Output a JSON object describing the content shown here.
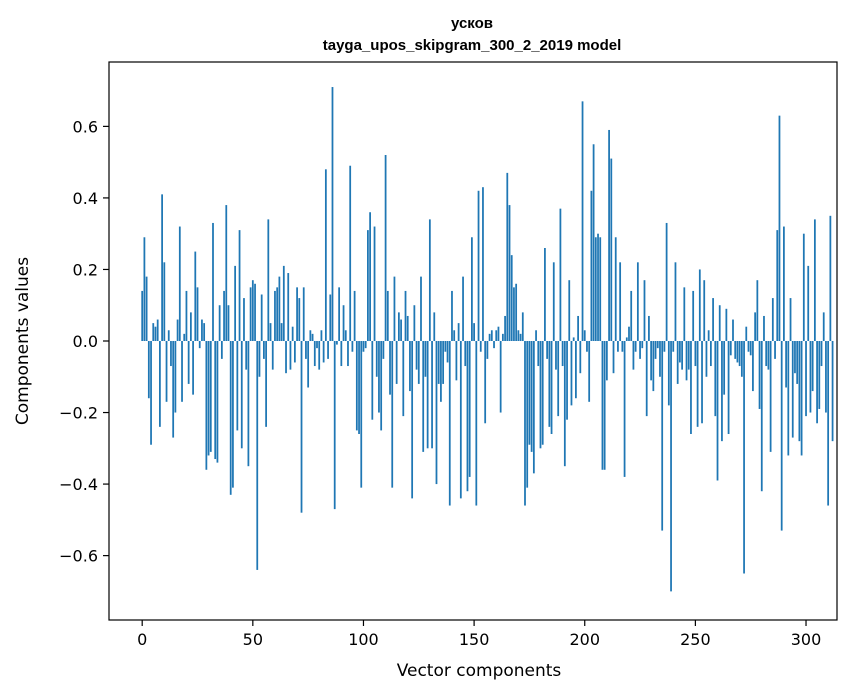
{
  "chart_data": {
    "type": "bar",
    "title": "усков",
    "subtitle": "tayga_upos_skipgram_300_2_2019 model",
    "xlabel": "Vector components",
    "ylabel": "Components values",
    "xlim": [
      -15,
      314
    ],
    "ylim": [
      -0.78,
      0.78
    ],
    "xticks": [
      0,
      50,
      100,
      150,
      200,
      250,
      300
    ],
    "xtick_labels": [
      "0",
      "50",
      "100",
      "150",
      "200",
      "250",
      "300"
    ],
    "yticks": [
      -0.6,
      -0.4,
      -0.2,
      0.0,
      0.2,
      0.4,
      0.6
    ],
    "ytick_labels": [
      "−0.6",
      "−0.4",
      "−0.2",
      "0.0",
      "0.2",
      "0.4",
      "0.6"
    ],
    "grid": false,
    "bar_color": "#1f77b4",
    "values": [
      0.14,
      0.29,
      0.18,
      -0.16,
      -0.29,
      0.05,
      0.04,
      0.06,
      -0.24,
      0.41,
      0.22,
      -0.17,
      0.03,
      -0.07,
      -0.27,
      -0.2,
      0.06,
      0.32,
      -0.17,
      0.02,
      0.14,
      -0.12,
      0.08,
      -0.15,
      0.25,
      0.15,
      -0.02,
      0.06,
      0.05,
      -0.36,
      -0.32,
      -0.31,
      0.33,
      -0.33,
      -0.34,
      0.1,
      -0.05,
      0.14,
      0.38,
      0.1,
      -0.43,
      -0.41,
      0.21,
      -0.25,
      0.31,
      -0.3,
      0.12,
      -0.08,
      -0.35,
      0.15,
      0.17,
      0.16,
      -0.64,
      -0.1,
      0.13,
      -0.05,
      -0.24,
      0.34,
      0.05,
      -0.08,
      0.14,
      0.15,
      0.18,
      0.05,
      0.21,
      -0.09,
      0.19,
      -0.08,
      0.04,
      -0.06,
      0.15,
      0.12,
      -0.48,
      0.15,
      -0.05,
      -0.13,
      0.03,
      0.02,
      -0.07,
      -0.02,
      -0.08,
      0.03,
      -0.06,
      0.48,
      -0.05,
      0.13,
      0.71,
      -0.47,
      -0.01,
      0.15,
      -0.07,
      0.1,
      0.03,
      -0.07,
      0.49,
      -0.03,
      0.14,
      -0.25,
      -0.26,
      -0.41,
      -0.03,
      -0.02,
      0.31,
      0.36,
      -0.22,
      0.32,
      -0.1,
      -0.2,
      -0.25,
      -0.05,
      0.52,
      0.14,
      -0.15,
      -0.41,
      0.18,
      -0.12,
      0.08,
      0.06,
      -0.21,
      0.14,
      0.07,
      -0.14,
      -0.44,
      0.1,
      -0.08,
      -0.12,
      0.18,
      -0.31,
      -0.1,
      -0.3,
      0.34,
      -0.3,
      0.08,
      -0.4,
      -0.12,
      -0.17,
      -0.12,
      -0.03,
      -0.06,
      -0.46,
      0.14,
      0.03,
      -0.11,
      0.05,
      -0.44,
      0.18,
      -0.07,
      -0.42,
      -0.38,
      0.29,
      0.05,
      -0.46,
      0.42,
      -0.03,
      0.43,
      -0.23,
      -0.05,
      0.02,
      0.03,
      -0.02,
      0.03,
      0.04,
      -0.2,
      0.02,
      0.07,
      0.47,
      0.38,
      0.24,
      0.15,
      0.16,
      0.03,
      0.02,
      0.08,
      -0.46,
      -0.41,
      -0.29,
      -0.31,
      -0.37,
      0.03,
      -0.07,
      -0.3,
      -0.29,
      0.26,
      -0.05,
      -0.24,
      -0.26,
      0.22,
      -0.08,
      -0.21,
      0.37,
      -0.07,
      -0.35,
      -0.22,
      0.17,
      -0.18,
      0.01,
      -0.16,
      0.07,
      -0.09,
      0.67,
      0.03,
      -0.03,
      -0.17,
      0.42,
      0.55,
      0.29,
      0.3,
      0.29,
      -0.36,
      -0.36,
      -0.11,
      0.59,
      0.51,
      -0.09,
      0.29,
      -0.03,
      0.22,
      -0.03,
      -0.38,
      0.01,
      0.04,
      0.14,
      -0.08,
      -0.03,
      0.22,
      -0.05,
      -0.02,
      0.17,
      -0.21,
      0.07,
      -0.11,
      -0.14,
      -0.05,
      -0.02,
      -0.1,
      -0.53,
      -0.03,
      0.33,
      -0.18,
      -0.7,
      -0.03,
      0.22,
      -0.12,
      -0.06,
      -0.08,
      0.15,
      -0.11,
      -0.08,
      -0.26,
      0.14,
      -0.07,
      -0.24,
      0.2,
      -0.23,
      0.17,
      -0.1,
      0.03,
      -0.07,
      0.12,
      -0.21,
      -0.39,
      0.1,
      -0.28,
      -0.15,
      0.09,
      -0.26,
      -0.04,
      0.06,
      -0.05,
      -0.06,
      -0.07,
      -0.1,
      -0.65,
      0.04,
      -0.03,
      -0.04,
      -0.14,
      0.08,
      0.17,
      -0.19,
      -0.42,
      0.07,
      -0.07,
      -0.08,
      -0.31,
      0.12,
      -0.05,
      0.31,
      0.63,
      -0.53,
      0.32,
      -0.13,
      -0.32,
      0.12,
      -0.27,
      -0.09,
      -0.12,
      -0.28,
      -0.32,
      0.3,
      -0.21,
      0.21,
      -0.2,
      -0.14,
      0.34,
      -0.23,
      -0.19,
      -0.07,
      0.08,
      -0.2,
      -0.46,
      0.35,
      -0.28
    ]
  }
}
